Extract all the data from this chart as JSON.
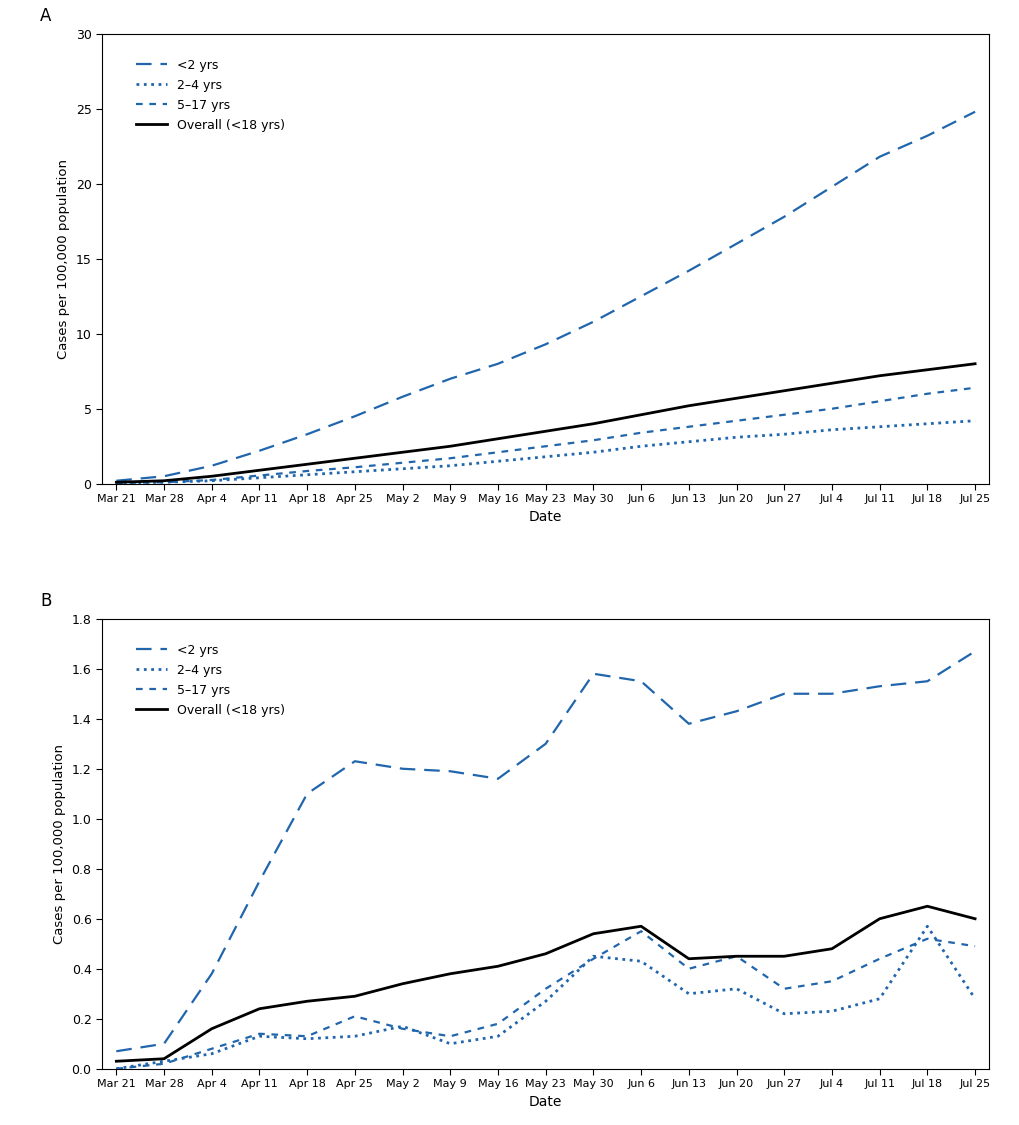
{
  "x_labels": [
    "Mar 21",
    "Mar 28",
    "Apr 4",
    "Apr 11",
    "Apr 18",
    "Apr 25",
    "May 2",
    "May 9",
    "May 16",
    "May 23",
    "May 30",
    "Jun 6",
    "Jun 13",
    "Jun 20",
    "Jun 27",
    "Jul 4",
    "Jul 11",
    "Jul 18",
    "Jul 25"
  ],
  "panel_A": {
    "title": "A",
    "ylabel": "Cases per 100,000 population",
    "xlabel": "Date",
    "ylim": [
      0,
      30
    ],
    "yticks": [
      0,
      5,
      10,
      15,
      20,
      25,
      30
    ],
    "lt2": [
      0.2,
      0.5,
      1.2,
      2.2,
      3.3,
      4.5,
      5.8,
      7.0,
      8.0,
      9.3,
      10.8,
      12.5,
      14.2,
      16.0,
      17.8,
      19.8,
      21.8,
      23.2,
      24.8
    ],
    "t2_4": [
      0.05,
      0.1,
      0.2,
      0.4,
      0.6,
      0.8,
      1.0,
      1.2,
      1.5,
      1.8,
      2.1,
      2.5,
      2.8,
      3.1,
      3.3,
      3.6,
      3.8,
      4.0,
      4.2
    ],
    "t5_17": [
      0.05,
      0.1,
      0.25,
      0.55,
      0.85,
      1.1,
      1.4,
      1.7,
      2.1,
      2.5,
      2.9,
      3.4,
      3.8,
      4.2,
      4.6,
      5.0,
      5.5,
      6.0,
      6.4
    ],
    "overall": [
      0.1,
      0.2,
      0.5,
      0.9,
      1.3,
      1.7,
      2.1,
      2.5,
      3.0,
      3.5,
      4.0,
      4.6,
      5.2,
      5.7,
      6.2,
      6.7,
      7.2,
      7.6,
      8.0
    ]
  },
  "panel_B": {
    "title": "B",
    "ylabel": "Cases per 100,000 population",
    "xlabel": "Date",
    "ylim": [
      0,
      1.8
    ],
    "yticks": [
      0.0,
      0.2,
      0.4,
      0.6,
      0.8,
      1.0,
      1.2,
      1.4,
      1.6,
      1.8
    ],
    "lt2": [
      0.07,
      0.1,
      0.38,
      0.75,
      1.1,
      1.23,
      1.2,
      1.19,
      1.16,
      1.3,
      1.58,
      1.55,
      1.38,
      1.43,
      1.5,
      1.5,
      1.53,
      1.55,
      1.67
    ],
    "t2_4": [
      0.0,
      0.03,
      0.06,
      0.13,
      0.12,
      0.13,
      0.17,
      0.1,
      0.13,
      0.27,
      0.45,
      0.43,
      0.3,
      0.32,
      0.22,
      0.23,
      0.28,
      0.57,
      0.28
    ],
    "t5_17": [
      0.0,
      0.02,
      0.08,
      0.14,
      0.13,
      0.21,
      0.16,
      0.13,
      0.18,
      0.32,
      0.44,
      0.55,
      0.4,
      0.45,
      0.32,
      0.35,
      0.44,
      0.52,
      0.49
    ],
    "overall": [
      0.03,
      0.04,
      0.16,
      0.24,
      0.27,
      0.29,
      0.34,
      0.38,
      0.41,
      0.46,
      0.54,
      0.57,
      0.44,
      0.45,
      0.45,
      0.48,
      0.6,
      0.65,
      0.6
    ]
  },
  "line_color_blue": "#2166ac",
  "line_color_black": "#000000",
  "legend_labels": [
    "<2 yrs",
    "2–4 yrs",
    "5–17 yrs",
    "Overall (<18 yrs)"
  ]
}
